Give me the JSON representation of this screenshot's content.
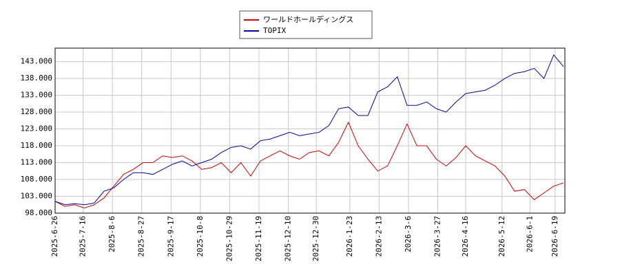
{
  "chart_data": {
    "type": "line",
    "x": [
      "2025-6-26",
      "2025-7-3",
      "2025-7-10",
      "2025-7-17",
      "2025-7-24",
      "2025-7-31",
      "2025-8-7",
      "2025-8-14",
      "2025-8-21",
      "2025-8-28",
      "2025-9-4",
      "2025-9-11",
      "2025-9-18",
      "2025-9-25",
      "2025-10-2",
      "2025-10-9",
      "2025-10-16",
      "2025-10-23",
      "2025-10-30",
      "2025-11-6",
      "2025-11-13",
      "2025-11-20",
      "2025-11-27",
      "2025-12-4",
      "2025-12-11",
      "2025-12-18",
      "2025-12-25",
      "2026-1-1",
      "2026-1-8",
      "2026-1-15",
      "2026-1-22",
      "2026-1-29",
      "2026-2-5",
      "2026-2-12",
      "2026-2-19",
      "2026-2-26",
      "2026-3-5",
      "2026-3-12",
      "2026-3-19",
      "2026-3-26",
      "2026-4-2",
      "2026-4-9",
      "2026-4-16",
      "2026-4-23",
      "2026-4-30",
      "2026-5-7",
      "2026-5-14",
      "2026-5-21",
      "2026-5-28",
      "2026-6-4",
      "2026-6-11",
      "2026-6-18",
      "2026-6-25"
    ],
    "series": [
      {
        "name": "ワールドホールディングス",
        "color": "#cc0000",
        "values": [
          101.5,
          100,
          100.5,
          99.5,
          100.5,
          102.5,
          106,
          109.5,
          111,
          113,
          113,
          115,
          114.5,
          115,
          113.5,
          111,
          111.5,
          113,
          110,
          113,
          109,
          113.5,
          115,
          116.5,
          115,
          114,
          116,
          116.5,
          115,
          119,
          125,
          118,
          114,
          110.5,
          112,
          118,
          124.5,
          118,
          118,
          114,
          112,
          114.5,
          118,
          115,
          113.5,
          112,
          109,
          104.5,
          105,
          102,
          104,
          106,
          107
        ]
      },
      {
        "name": "TOPIX",
        "color": "#0000aa",
        "values": [
          101.5,
          100.5,
          100.8,
          100.5,
          101,
          104.5,
          105.5,
          108,
          110,
          110,
          109.5,
          111,
          112.5,
          113.5,
          112,
          113,
          114,
          116,
          117.5,
          118,
          117,
          119.5,
          120,
          121,
          122,
          121,
          121.5,
          122,
          124,
          129,
          129.5,
          127,
          127,
          134,
          135.5,
          138.5,
          130,
          130,
          131,
          129,
          128,
          131,
          133.5,
          134,
          134.5,
          136,
          138,
          139.5,
          140,
          141,
          138,
          145,
          141.5
        ]
      }
    ],
    "xlim": [
      "2025-6-26",
      "2026-6-26"
    ],
    "xticks": [
      "2025-6-26",
      "2025-7-16",
      "2025-8-6",
      "2025-8-27",
      "2025-9-17",
      "2025-10-8",
      "2025-10-29",
      "2025-11-19",
      "2025-12-10",
      "2025-12-30",
      "2026-1-23",
      "2026-2-13",
      "2026-3-6",
      "2026-3-27",
      "2026-4-16",
      "2026-5-12",
      "2026-6-1",
      "2026-6-19"
    ],
    "ylim": [
      98,
      147
    ],
    "yticks": [
      {
        "value": 98,
        "label": "98.000"
      },
      {
        "value": 103,
        "label": "103.000"
      },
      {
        "value": 108,
        "label": "108.000"
      },
      {
        "value": 113,
        "label": "113.000"
      },
      {
        "value": 118,
        "label": "118.000"
      },
      {
        "value": 123,
        "label": "123.000"
      },
      {
        "value": 128,
        "label": "128.000"
      },
      {
        "value": 133,
        "label": "133.000"
      },
      {
        "value": 138,
        "label": "138.000"
      },
      {
        "value": 143,
        "label": "143.000"
      }
    ],
    "grid": true
  }
}
